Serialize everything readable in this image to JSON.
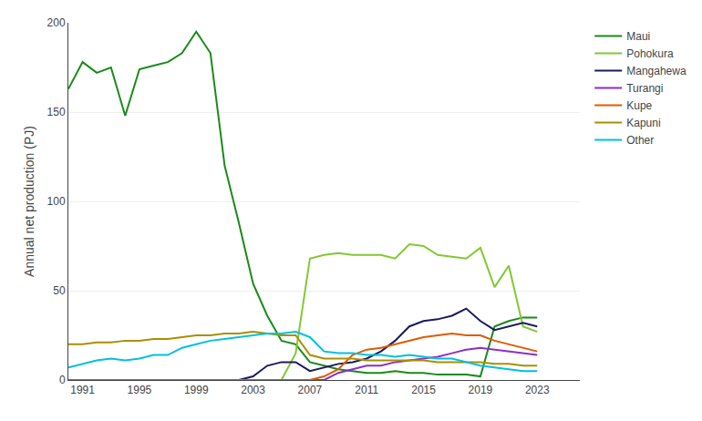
{
  "chart_data": {
    "type": "line",
    "ylabel": "Annual net production (PJ)",
    "x": [
      1990,
      1991,
      1992,
      1993,
      1994,
      1995,
      1996,
      1997,
      1998,
      1999,
      2000,
      2001,
      2002,
      2003,
      2004,
      2005,
      2006,
      2007,
      2008,
      2009,
      2010,
      2011,
      2012,
      2013,
      2014,
      2015,
      2016,
      2017,
      2018,
      2019,
      2020,
      2021,
      2022,
      2023
    ],
    "series": [
      {
        "name": "Maui",
        "color": "#1a8a1a",
        "values": [
          163,
          178,
          172,
          175,
          148,
          174,
          176,
          178,
          183,
          195,
          183,
          120,
          88,
          54,
          36,
          22,
          20,
          10,
          8,
          6,
          5,
          4,
          4,
          5,
          4,
          4,
          3,
          3,
          3,
          2,
          30,
          33,
          35,
          35
        ]
      },
      {
        "name": "Pohokura",
        "color": "#82c832",
        "values": [
          0,
          0,
          0,
          0,
          0,
          0,
          0,
          0,
          0,
          0,
          0,
          0,
          0,
          0,
          0,
          0,
          15,
          68,
          70,
          71,
          70,
          70,
          70,
          68,
          76,
          75,
          70,
          69,
          68,
          74,
          52,
          64,
          30,
          27
        ]
      },
      {
        "name": "Mangahewa",
        "color": "#1a1a5e",
        "values": [
          0,
          0,
          0,
          0,
          0,
          0,
          0,
          0,
          0,
          0,
          0,
          0,
          0,
          2,
          8,
          10,
          10,
          5,
          7,
          9,
          10,
          12,
          16,
          22,
          30,
          33,
          34,
          36,
          40,
          33,
          28,
          30,
          32,
          30
        ]
      },
      {
        "name": "Turangi",
        "color": "#8b2fc8",
        "values": [
          0,
          0,
          0,
          0,
          0,
          0,
          0,
          0,
          0,
          0,
          0,
          0,
          0,
          0,
          0,
          0,
          0,
          0,
          0,
          4,
          6,
          8,
          8,
          10,
          11,
          12,
          13,
          15,
          17,
          18,
          17,
          16,
          15,
          14
        ]
      },
      {
        "name": "Kupe",
        "color": "#e05a00",
        "values": [
          0,
          0,
          0,
          0,
          0,
          0,
          0,
          0,
          0,
          0,
          0,
          0,
          0,
          0,
          0,
          0,
          0,
          0,
          2,
          6,
          14,
          17,
          18,
          20,
          22,
          24,
          25,
          26,
          25,
          25,
          22,
          20,
          18,
          16
        ]
      },
      {
        "name": "Kapuni",
        "color": "#a89000",
        "values": [
          20,
          20,
          21,
          21,
          22,
          22,
          23,
          23,
          24,
          25,
          25,
          26,
          26,
          27,
          26,
          25,
          25,
          14,
          12,
          12,
          12,
          11,
          11,
          11,
          11,
          11,
          10,
          10,
          10,
          10,
          9,
          9,
          8,
          8
        ]
      },
      {
        "name": "Other",
        "color": "#00c0e0",
        "values": [
          7,
          9,
          11,
          12,
          11,
          12,
          14,
          14,
          18,
          20,
          22,
          23,
          24,
          25,
          26,
          26,
          27,
          24,
          16,
          15,
          15,
          14,
          14,
          13,
          14,
          13,
          12,
          12,
          10,
          8,
          7,
          6,
          5,
          5
        ]
      }
    ],
    "xlim": [
      1990,
      2026
    ],
    "xticks": [
      1991,
      1995,
      1999,
      2003,
      2007,
      2011,
      2015,
      2019,
      2023
    ],
    "ylim": [
      0,
      200
    ],
    "yticks": [
      0,
      50,
      100,
      150,
      200
    ],
    "grid": "y",
    "legend": "right"
  }
}
